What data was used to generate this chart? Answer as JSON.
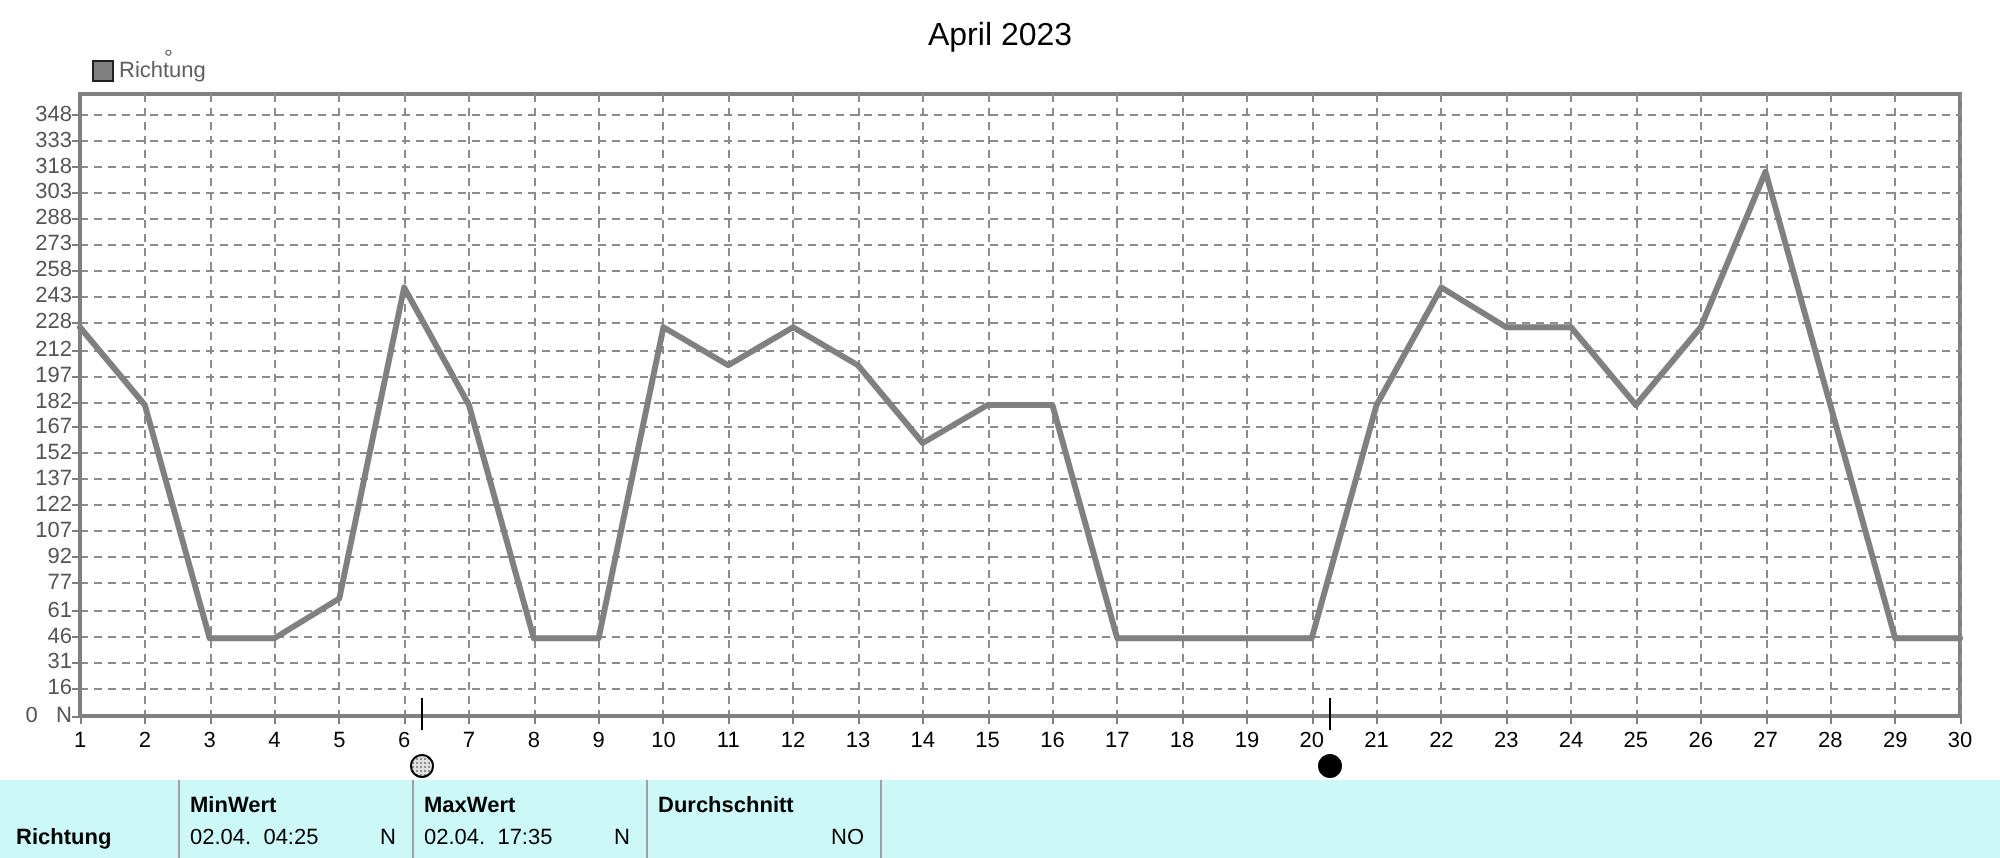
{
  "chart_data": {
    "type": "line",
    "title": "April 2023",
    "ylabel": "°",
    "x": [
      1,
      2,
      3,
      4,
      5,
      6,
      7,
      8,
      9,
      10,
      11,
      12,
      13,
      14,
      15,
      16,
      17,
      18,
      19,
      20,
      21,
      22,
      23,
      24,
      25,
      26,
      27,
      28,
      29,
      30
    ],
    "xlim": [
      1,
      30
    ],
    "xticks": [
      1,
      2,
      3,
      4,
      5,
      6,
      7,
      8,
      9,
      10,
      11,
      12,
      13,
      14,
      15,
      16,
      17,
      18,
      19,
      20,
      21,
      22,
      23,
      24,
      25,
      26,
      27,
      28,
      29,
      30
    ],
    "series": [
      {
        "name": "Richtung",
        "color": "#808080",
        "values": [
          225,
          180,
          45,
          45,
          68,
          248,
          180,
          45,
          45,
          225,
          203,
          225,
          203,
          158,
          180,
          180,
          45,
          45,
          45,
          45,
          180,
          248,
          225,
          225,
          180,
          225,
          315,
          180,
          45,
          45
        ]
      }
    ],
    "ylim": [
      0,
      360
    ],
    "yticks": [
      {
        "value": 0,
        "label": "0   N"
      },
      16,
      31,
      46,
      61,
      77,
      92,
      107,
      122,
      137,
      152,
      167,
      182,
      197,
      212,
      228,
      243,
      258,
      273,
      288,
      303,
      318,
      333,
      348
    ],
    "grid": true,
    "legend": "top left",
    "marker": "none",
    "line_style": "solid",
    "annotations": [
      "Richtung",
      "MinWert",
      "02.04.  04:25",
      "N",
      "MaxWert",
      "02.04.  17:35",
      "N",
      "Durchschnitt",
      "NO"
    ]
  }
}
